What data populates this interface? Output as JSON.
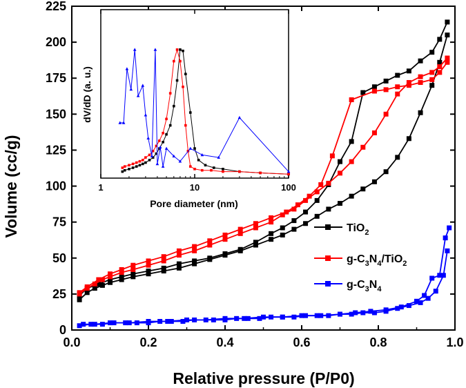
{
  "chart_data": [
    {
      "type": "line",
      "title": "",
      "xlabel": "Relative pressure  (P/P0)",
      "ylabel": "Volume  (cc/g)",
      "xlim": [
        0.0,
        1.0
      ],
      "ylim": [
        0,
        225
      ],
      "xticks": [
        "0.0",
        "0.2",
        "0.4",
        "0.6",
        "0.8",
        "1.0"
      ],
      "yticks": [
        "0",
        "25",
        "50",
        "75",
        "100",
        "125",
        "150",
        "175",
        "200",
        "225"
      ],
      "legend_position": "right",
      "series": [
        {
          "name": "TiO2",
          "legend_label": [
            "TiO",
            "2",
            ""
          ],
          "color": "#000000",
          "adsorption": {
            "x": [
              0.02,
              0.04,
              0.06,
              0.08,
              0.1,
              0.13,
              0.16,
              0.2,
              0.24,
              0.28,
              0.32,
              0.36,
              0.4,
              0.44,
              0.48,
              0.52,
              0.55,
              0.58,
              0.61,
              0.64,
              0.67,
              0.7,
              0.73,
              0.76,
              0.79,
              0.82,
              0.85,
              0.88,
              0.91,
              0.94,
              0.96,
              0.98
            ],
            "y": [
              21,
              26,
              29,
              31,
              33,
              35,
              37,
              39,
              41,
              43,
              46,
              49,
              52,
              55,
              59,
              63,
              66,
              70,
              74,
              79,
              84,
              88,
              93,
              98,
              103,
              110,
              120,
              133,
              151,
              170,
              186,
              205
            ]
          },
          "desorption": {
            "x": [
              0.98,
              0.96,
              0.94,
              0.91,
              0.88,
              0.85,
              0.82,
              0.79,
              0.76,
              0.73,
              0.7,
              0.67,
              0.64,
              0.61,
              0.58,
              0.55,
              0.52,
              0.48,
              0.44,
              0.4,
              0.36,
              0.32,
              0.28,
              0.24,
              0.2,
              0.16,
              0.13,
              0.1,
              0.07,
              0.04,
              0.02
            ],
            "y": [
              214,
              202,
              193,
              187,
              180,
              177,
              173,
              169,
              165,
              131,
              117,
              101,
              90,
              82,
              76,
              71,
              67,
              61,
              56,
              53,
              50,
              48,
              46,
              43,
              41,
              39,
              37,
              35,
              32,
              29,
              24
            ]
          }
        },
        {
          "name": "g-C3N4/TiO2",
          "legend_label": [
            "g-C",
            "3",
            "N",
            "4",
            "/TiO",
            "2",
            ""
          ],
          "color": "#ff0000",
          "adsorption": {
            "x": [
              0.02,
              0.04,
              0.06,
              0.08,
              0.1,
              0.13,
              0.16,
              0.2,
              0.24,
              0.28,
              0.32,
              0.36,
              0.4,
              0.44,
              0.48,
              0.52,
              0.55,
              0.58,
              0.61,
              0.64,
              0.67,
              0.7,
              0.73,
              0.76,
              0.79,
              0.82,
              0.85,
              0.88,
              0.91,
              0.94,
              0.96,
              0.98
            ],
            "y": [
              25,
              29,
              32,
              35,
              37,
              40,
              42,
              45,
              48,
              52,
              55,
              59,
              63,
              67,
              71,
              75,
              80,
              84,
              90,
              96,
              102,
              109,
              117,
              127,
              137,
              150,
              164,
              172,
              176,
              179,
              183,
              189
            ]
          },
          "desorption": {
            "x": [
              0.98,
              0.96,
              0.94,
              0.91,
              0.88,
              0.85,
              0.82,
              0.79,
              0.73,
              0.68,
              0.65,
              0.62,
              0.59,
              0.56,
              0.52,
              0.48,
              0.44,
              0.4,
              0.36,
              0.32,
              0.28,
              0.24,
              0.2,
              0.16,
              0.13,
              0.1,
              0.07,
              0.04,
              0.02
            ],
            "y": [
              186,
              179,
              174,
              172,
              170,
              169,
              167,
              166,
              160,
              121,
              101,
              93,
              87,
              82,
              78,
              74,
              70,
              66,
              62,
              58,
              55,
              51,
              48,
              45,
              42,
              39,
              35,
              30,
              26
            ]
          }
        },
        {
          "name": "g-C3N4",
          "legend_label": [
            "g-C",
            "3",
            "N",
            "4",
            ""
          ],
          "color": "#0000ff",
          "adsorption": {
            "x": [
              0.02,
              0.05,
              0.08,
              0.11,
              0.14,
              0.17,
              0.2,
              0.23,
              0.26,
              0.29,
              0.32,
              0.37,
              0.4,
              0.43,
              0.46,
              0.49,
              0.52,
              0.55,
              0.58,
              0.61,
              0.64,
              0.67,
              0.7,
              0.73,
              0.76,
              0.79,
              0.82,
              0.85,
              0.88,
              0.91,
              0.93,
              0.95,
              0.97,
              0.98
            ],
            "y": [
              3,
              4,
              4,
              5,
              5,
              5,
              5,
              6,
              6,
              6,
              7,
              7,
              7,
              8,
              8,
              8,
              9,
              9,
              9,
              10,
              10,
              10,
              11,
              11,
              12,
              12,
              13,
              15,
              17,
              19,
              22,
              27,
              38,
              55
            ]
          },
          "desorption": {
            "x": [
              0.985,
              0.975,
              0.96,
              0.94,
              0.92,
              0.9,
              0.86,
              0.82,
              0.78,
              0.74,
              0.7,
              0.65,
              0.6,
              0.55,
              0.5,
              0.45,
              0.4,
              0.35,
              0.3,
              0.25,
              0.2,
              0.15,
              0.1,
              0.06,
              0.03
            ],
            "y": [
              71,
              64,
              38,
              36,
              24,
              20,
              16,
              14,
              13,
              12,
              11,
              10,
              10,
              9,
              9,
              8,
              8,
              7,
              7,
              6,
              6,
              5,
              5,
              4,
              4
            ]
          }
        }
      ]
    },
    {
      "type": "line",
      "title": "",
      "xlabel": "Pore diameter  (nm)",
      "ylabel": "dV/dD  (a. u.)",
      "xscale": "log",
      "xlim": [
        1,
        100
      ],
      "ylim": [
        0,
        1
      ],
      "xticks": [
        "1",
        "10",
        "100"
      ],
      "series": [
        {
          "name": "TiO2",
          "color": "#000000",
          "x": [
            1.7,
            1.8,
            2.0,
            2.2,
            2.4,
            2.6,
            2.8,
            3.0,
            3.3,
            3.6,
            3.9,
            4.2,
            4.6,
            5.0,
            5.5,
            6.0,
            6.5,
            7.0,
            7.5,
            8.0,
            9.0,
            10.0,
            11.0,
            13.0,
            16.0,
            20.0,
            30.0,
            50.0,
            100.0
          ],
          "y": [
            0.04,
            0.05,
            0.06,
            0.07,
            0.08,
            0.09,
            0.1,
            0.11,
            0.13,
            0.15,
            0.18,
            0.22,
            0.27,
            0.33,
            0.4,
            0.55,
            0.75,
            0.99,
            0.98,
            0.8,
            0.5,
            0.22,
            0.13,
            0.09,
            0.07,
            0.06,
            0.04,
            0.03,
            0.02
          ]
        },
        {
          "name": "g-C3N4/TiO2",
          "color": "#ff0000",
          "x": [
            1.7,
            1.8,
            2.0,
            2.2,
            2.4,
            2.6,
            2.8,
            3.0,
            3.3,
            3.6,
            3.9,
            4.2,
            4.6,
            5.0,
            5.5,
            6.0,
            6.5,
            7.0,
            7.5,
            8.0,
            8.5,
            9.0,
            10.0,
            12.0,
            15.0,
            20.0,
            30.0,
            50.0,
            100.0
          ],
          "y": [
            0.07,
            0.08,
            0.09,
            0.1,
            0.11,
            0.12,
            0.13,
            0.15,
            0.17,
            0.2,
            0.24,
            0.28,
            0.34,
            0.45,
            0.65,
            0.9,
            0.99,
            0.9,
            0.7,
            0.4,
            0.2,
            0.08,
            0.06,
            0.05,
            0.05,
            0.04,
            0.04,
            0.03,
            0.02
          ]
        },
        {
          "name": "g-C3N4",
          "color": "#0000ff",
          "x": [
            1.6,
            1.75,
            1.9,
            2.1,
            2.3,
            2.5,
            2.8,
            3.0,
            3.2,
            3.5,
            3.8,
            4.0,
            4.3,
            4.6,
            5.0,
            6.0,
            7.0,
            9.0,
            12.0,
            18.0,
            30.0,
            100.0
          ],
          "y": [
            0.42,
            0.42,
            0.84,
            0.68,
            0.99,
            0.63,
            0.71,
            0.48,
            0.3,
            0.16,
            0.99,
            0.1,
            0.23,
            0.08,
            0.22,
            0.16,
            0.12,
            0.22,
            0.17,
            0.15,
            0.46,
            0.04
          ]
        }
      ]
    }
  ]
}
